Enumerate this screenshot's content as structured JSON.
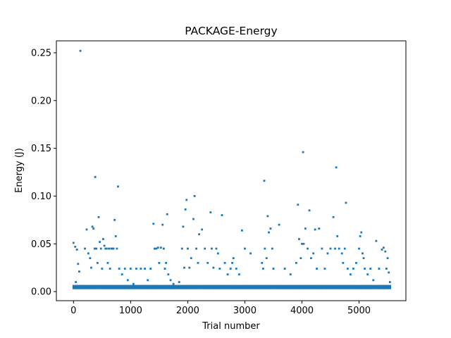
{
  "chart_data": {
    "type": "scatter",
    "title": "PACKAGE-Energy",
    "xlabel": "Trial number",
    "ylabel": "Energy (J)",
    "xlim": [
      -300,
      5820
    ],
    "ylim": [
      -0.0095,
      0.2625
    ],
    "xticks": [
      0,
      1000,
      2000,
      3000,
      4000,
      5000
    ],
    "yticks": [
      0.0,
      0.05,
      0.1,
      0.15,
      0.2,
      0.25
    ],
    "xtick_labels": [
      "0",
      "1000",
      "2000",
      "3000",
      "4000",
      "5000"
    ],
    "ytick_labels": [
      "0.00",
      "0.05",
      "0.10",
      "0.15",
      "0.20",
      "0.25"
    ],
    "grid": false,
    "marker_color": "#1f77b4",
    "baseline": {
      "x_start": 0,
      "x_end": 5560,
      "values": [
        0.0035,
        0.0042,
        0.0048,
        0.0055,
        0.006
      ]
    },
    "series": [
      {
        "points": [
          [
            120,
            0.252
          ],
          [
            380,
            0.12
          ],
          [
            780,
            0.11
          ],
          [
            4020,
            0.146
          ],
          [
            4600,
            0.13
          ],
          [
            3340,
            0.116
          ],
          [
            1980,
            0.096
          ],
          [
            2120,
            0.1
          ],
          [
            3930,
            0.091
          ],
          [
            4770,
            0.093
          ],
          [
            0,
            0.051
          ],
          [
            30,
            0.047
          ],
          [
            60,
            0.044
          ],
          [
            80,
            0.029
          ],
          [
            40,
            0.01
          ],
          [
            100,
            0.021
          ],
          [
            200,
            0.045
          ],
          [
            230,
            0.065
          ],
          [
            260,
            0.04
          ],
          [
            290,
            0.035
          ],
          [
            310,
            0.025
          ],
          [
            330,
            0.068
          ],
          [
            350,
            0.066
          ],
          [
            370,
            0.045
          ],
          [
            400,
            0.045
          ],
          [
            420,
            0.03
          ],
          [
            440,
            0.078
          ],
          [
            460,
            0.052
          ],
          [
            480,
            0.045
          ],
          [
            500,
            0.024
          ],
          [
            520,
            0.055
          ],
          [
            540,
            0.048
          ],
          [
            560,
            0.045
          ],
          [
            580,
            0.045
          ],
          [
            600,
            0.03
          ],
          [
            620,
            0.045
          ],
          [
            640,
            0.024
          ],
          [
            660,
            0.045
          ],
          [
            680,
            0.045
          ],
          [
            700,
            0.045
          ],
          [
            720,
            0.075
          ],
          [
            740,
            0.058
          ],
          [
            760,
            0.045
          ],
          [
            800,
            0.024
          ],
          [
            850,
            0.018
          ],
          [
            900,
            0.024
          ],
          [
            950,
            0.012
          ],
          [
            1000,
            0.024
          ],
          [
            1050,
            0.008
          ],
          [
            1100,
            0.024
          ],
          [
            1180,
            0.024
          ],
          [
            1250,
            0.024
          ],
          [
            1300,
            0.012
          ],
          [
            1350,
            0.024
          ],
          [
            1400,
            0.071
          ],
          [
            1420,
            0.045
          ],
          [
            1450,
            0.045
          ],
          [
            1480,
            0.046
          ],
          [
            1500,
            0.03
          ],
          [
            1530,
            0.046
          ],
          [
            1560,
            0.07
          ],
          [
            1580,
            0.045
          ],
          [
            1600,
            0.024
          ],
          [
            1620,
            0.03
          ],
          [
            1640,
            0.081
          ],
          [
            1660,
            0.018
          ],
          [
            1700,
            0.012
          ],
          [
            1750,
            0.008
          ],
          [
            1850,
            0.01
          ],
          [
            1900,
            0.045
          ],
          [
            1920,
            0.068
          ],
          [
            1940,
            0.025
          ],
          [
            1960,
            0.086
          ],
          [
            2000,
            0.045
          ],
          [
            2030,
            0.025
          ],
          [
            2060,
            0.035
          ],
          [
            2100,
            0.076
          ],
          [
            2150,
            0.045
          ],
          [
            2180,
            0.03
          ],
          [
            2200,
            0.06
          ],
          [
            2250,
            0.065
          ],
          [
            2300,
            0.045
          ],
          [
            2350,
            0.03
          ],
          [
            2400,
            0.083
          ],
          [
            2420,
            0.045
          ],
          [
            2450,
            0.025
          ],
          [
            2500,
            0.045
          ],
          [
            2530,
            0.04
          ],
          [
            2560,
            0.024
          ],
          [
            2600,
            0.08
          ],
          [
            2650,
            0.03
          ],
          [
            2700,
            0.018
          ],
          [
            2750,
            0.024
          ],
          [
            2780,
            0.03
          ],
          [
            2800,
            0.035
          ],
          [
            2850,
            0.024
          ],
          [
            2900,
            0.018
          ],
          [
            2950,
            0.064
          ],
          [
            3000,
            0.045
          ],
          [
            3100,
            0.04
          ],
          [
            3300,
            0.03
          ],
          [
            3320,
            0.024
          ],
          [
            3350,
            0.045
          ],
          [
            3380,
            0.035
          ],
          [
            3400,
            0.079
          ],
          [
            3420,
            0.062
          ],
          [
            3450,
            0.066
          ],
          [
            3480,
            0.045
          ],
          [
            3500,
            0.024
          ],
          [
            3600,
            0.07
          ],
          [
            3700,
            0.024
          ],
          [
            3800,
            0.018
          ],
          [
            3900,
            0.03
          ],
          [
            3950,
            0.055
          ],
          [
            3980,
            0.035
          ],
          [
            4000,
            0.05
          ],
          [
            4030,
            0.05
          ],
          [
            4060,
            0.066
          ],
          [
            4100,
            0.045
          ],
          [
            4130,
            0.085
          ],
          [
            4160,
            0.035
          ],
          [
            4200,
            0.04
          ],
          [
            4230,
            0.065
          ],
          [
            4260,
            0.024
          ],
          [
            4300,
            0.066
          ],
          [
            4350,
            0.045
          ],
          [
            4400,
            0.024
          ],
          [
            4450,
            0.04
          ],
          [
            4500,
            0.045
          ],
          [
            4550,
            0.078
          ],
          [
            4580,
            0.045
          ],
          [
            4620,
            0.058
          ],
          [
            4650,
            0.045
          ],
          [
            4700,
            0.04
          ],
          [
            4720,
            0.03
          ],
          [
            4750,
            0.045
          ],
          [
            4800,
            0.024
          ],
          [
            4850,
            0.018
          ],
          [
            4900,
            0.024
          ],
          [
            4950,
            0.03
          ],
          [
            5000,
            0.045
          ],
          [
            5020,
            0.058
          ],
          [
            5040,
            0.062
          ],
          [
            5060,
            0.04
          ],
          [
            5080,
            0.035
          ],
          [
            5100,
            0.024
          ],
          [
            5150,
            0.018
          ],
          [
            5200,
            0.024
          ],
          [
            5250,
            0.012
          ],
          [
            5300,
            0.053
          ],
          [
            5350,
            0.024
          ],
          [
            5400,
            0.044
          ],
          [
            5430,
            0.046
          ],
          [
            5460,
            0.042
          ],
          [
            5480,
            0.024
          ],
          [
            5500,
            0.035
          ],
          [
            5520,
            0.02
          ],
          [
            5540,
            0.01
          ]
        ]
      }
    ]
  }
}
